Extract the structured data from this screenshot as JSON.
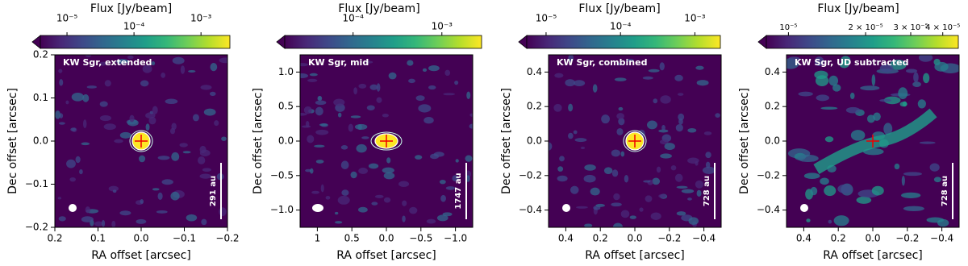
{
  "chart_data": [
    {
      "type": "heatmap",
      "annotation": "KW Sgr, extended",
      "scale_bar_label": "291 au",
      "xlabel": "RA offset [arcsec]",
      "ylabel": "Dec offset [arcsec]",
      "xlim": [
        0.2,
        -0.2
      ],
      "xticks": [
        0.2,
        0.1,
        {
          "value": 0,
          "label": "0.0"
        },
        {
          "value": -0.1,
          "label": "−0.1"
        },
        {
          "value": -0.2,
          "label": "−0.2"
        }
      ],
      "ylim": [
        -0.2,
        0.2
      ],
      "yticks": [
        {
          "value": -0.2,
          "label": "−0.2"
        },
        {
          "value": -0.1,
          "label": "−0.1"
        },
        {
          "value": 0,
          "label": "0.0"
        },
        0.1,
        0.2
      ],
      "colorbar": {
        "label": "Flux [Jy/beam]",
        "colormap": "viridis",
        "scale": "log",
        "lim": [
          4e-06,
          0.0027
        ],
        "ticks": [
          {
            "value": 1e-05,
            "label": "10⁻⁵"
          },
          {
            "value": 0.0001,
            "label": "10⁻⁴"
          },
          {
            "value": 0.001,
            "label": "10⁻³"
          }
        ]
      }
    },
    {
      "type": "heatmap",
      "annotation": "KW Sgr, mid",
      "scale_bar_label": "1747 au",
      "xlabel": "RA offset [arcsec]",
      "ylabel": "Dec offset [arcsec]",
      "xlim": [
        1.25,
        -1.25
      ],
      "xticks": [
        1.0,
        0.5,
        {
          "value": 0,
          "label": "0.0"
        },
        {
          "value": -0.5,
          "label": "−0.5"
        },
        {
          "value": -1,
          "label": "−1.0"
        }
      ],
      "ylim": [
        -1.25,
        1.25
      ],
      "yticks": [
        {
          "value": -1,
          "label": "−1.0"
        },
        {
          "value": -0.5,
          "label": "−0.5"
        },
        {
          "value": 0,
          "label": "0.0"
        },
        0.5,
        {
          "value": 1,
          "label": "1.0"
        }
      ],
      "colorbar": {
        "label": "Flux [Jy/beam]",
        "colormap": "viridis",
        "scale": "log",
        "lim": [
          1.7e-05,
          0.0028
        ],
        "ticks": [
          {
            "value": 0.0001,
            "label": "10⁻⁴"
          },
          {
            "value": 0.001,
            "label": "10⁻³"
          }
        ]
      }
    },
    {
      "type": "heatmap",
      "annotation": "KW Sgr, combined",
      "scale_bar_label": "728 au",
      "xlabel": "RA offset [arcsec]",
      "ylabel": "Dec offset [arcsec]",
      "xlim": [
        0.5,
        -0.5
      ],
      "xticks": [
        0.4,
        0.2,
        {
          "value": 0,
          "label": "0.0"
        },
        {
          "value": -0.2,
          "label": "−0.2"
        },
        {
          "value": -0.4,
          "label": "−0.4"
        }
      ],
      "ylim": [
        -0.5,
        0.5
      ],
      "yticks": [
        {
          "value": -0.4,
          "label": "−0.4"
        },
        {
          "value": -0.2,
          "label": "−0.2"
        },
        {
          "value": 0,
          "label": "0.0"
        },
        0.2,
        0.4
      ],
      "colorbar": {
        "label": "Flux [Jy/beam]",
        "colormap": "viridis",
        "scale": "log",
        "lim": [
          5.5e-06,
          0.0022
        ],
        "ticks": [
          {
            "value": 1e-05,
            "label": "10⁻⁵"
          },
          {
            "value": 0.0001,
            "label": "10⁻⁴"
          },
          {
            "value": 0.001,
            "label": "10⁻³"
          }
        ]
      }
    },
    {
      "type": "heatmap",
      "annotation": "KW Sgr, UD subtracted",
      "scale_bar_label": "728 au",
      "xlabel": "RA offset [arcsec]",
      "ylabel": "Dec offset [arcsec]",
      "xlim": [
        0.5,
        -0.5
      ],
      "xticks": [
        0.4,
        0.2,
        {
          "value": 0,
          "label": "0.0"
        },
        {
          "value": -0.2,
          "label": "−0.2"
        },
        {
          "value": -0.4,
          "label": "−0.4"
        }
      ],
      "ylim": [
        -0.5,
        0.5
      ],
      "yticks": [
        {
          "value": -0.4,
          "label": "−0.4"
        },
        {
          "value": -0.2,
          "label": "−0.2"
        },
        {
          "value": 0,
          "label": "0.0"
        },
        0.2,
        0.4
      ],
      "colorbar": {
        "label": "Flux [Jy/beam]",
        "colormap": "viridis",
        "scale": "log",
        "lim": [
          8.2e-06,
          4.6e-05
        ],
        "ticks": [
          {
            "value": 1e-05,
            "label": "10⁻⁵"
          },
          {
            "value": 2e-05,
            "label": "2 × 10⁻⁵"
          },
          {
            "value": 3e-05,
            "label": "3 × 10⁻⁵"
          },
          {
            "value": 4e-05,
            "label": "4 × 10⁻⁵"
          }
        ]
      }
    }
  ]
}
